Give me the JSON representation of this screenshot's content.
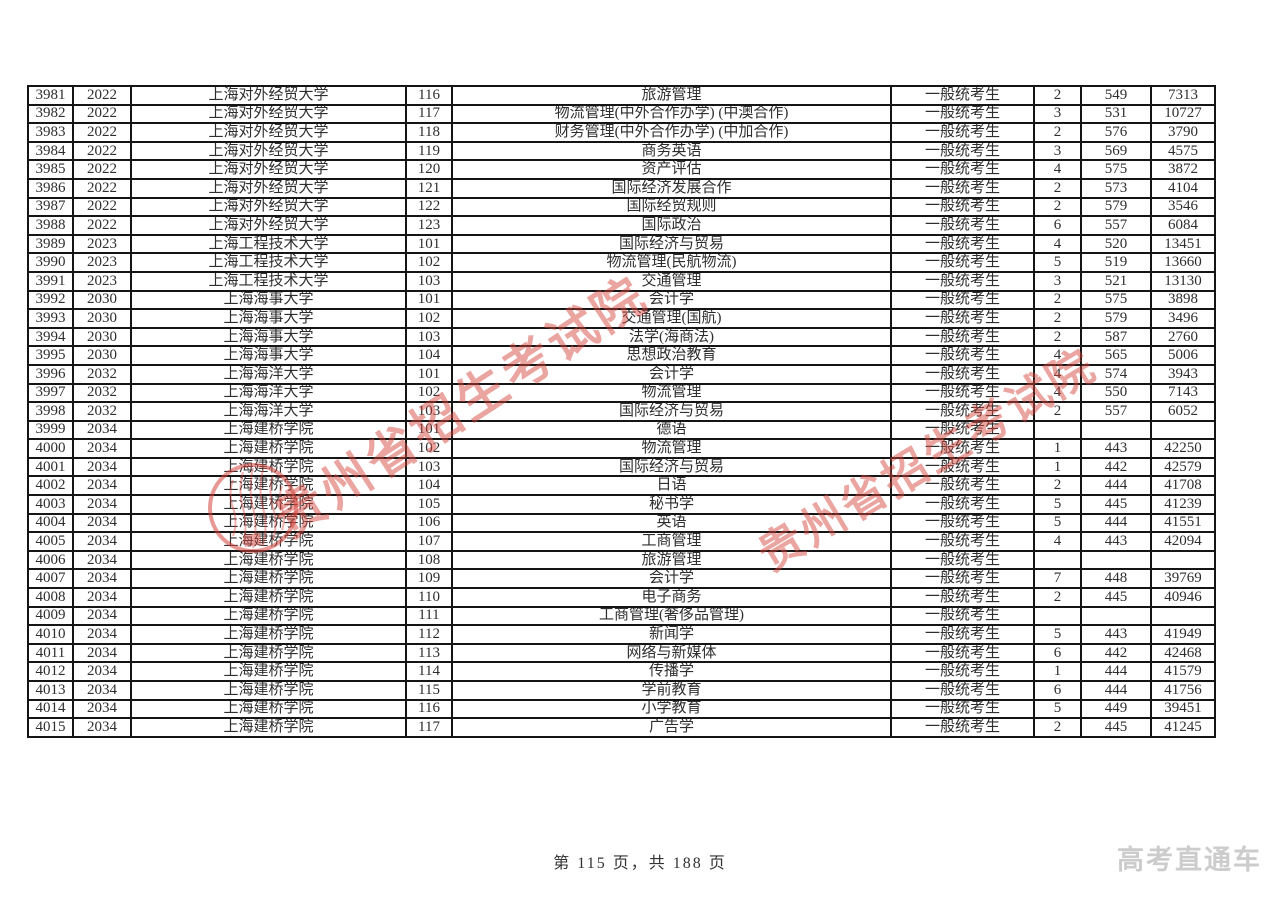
{
  "page": {
    "footer_text": "第 115 页，共 188 页",
    "brand_text": "高考直通车",
    "watermark_text": "贵州省招生考试院",
    "watermark_color": "#d6453d"
  },
  "table": {
    "column_keys": [
      "seq",
      "school_code",
      "university",
      "major_code",
      "major",
      "candidate_type",
      "plan_count",
      "score",
      "rank"
    ],
    "rows": [
      [
        "3981",
        "2022",
        "上海对外经贸大学",
        "116",
        "旅游管理",
        "一般统考生",
        "2",
        "549",
        "7313"
      ],
      [
        "3982",
        "2022",
        "上海对外经贸大学",
        "117",
        "物流管理(中外合作办学) (中澳合作)",
        "一般统考生",
        "3",
        "531",
        "10727"
      ],
      [
        "3983",
        "2022",
        "上海对外经贸大学",
        "118",
        "财务管理(中外合作办学) (中加合作)",
        "一般统考生",
        "2",
        "576",
        "3790"
      ],
      [
        "3984",
        "2022",
        "上海对外经贸大学",
        "119",
        "商务英语",
        "一般统考生",
        "3",
        "569",
        "4575"
      ],
      [
        "3985",
        "2022",
        "上海对外经贸大学",
        "120",
        "资产评估",
        "一般统考生",
        "4",
        "575",
        "3872"
      ],
      [
        "3986",
        "2022",
        "上海对外经贸大学",
        "121",
        "国际经济发展合作",
        "一般统考生",
        "2",
        "573",
        "4104"
      ],
      [
        "3987",
        "2022",
        "上海对外经贸大学",
        "122",
        "国际经贸规则",
        "一般统考生",
        "2",
        "579",
        "3546"
      ],
      [
        "3988",
        "2022",
        "上海对外经贸大学",
        "123",
        "国际政治",
        "一般统考生",
        "6",
        "557",
        "6084"
      ],
      [
        "3989",
        "2023",
        "上海工程技术大学",
        "101",
        "国际经济与贸易",
        "一般统考生",
        "4",
        "520",
        "13451"
      ],
      [
        "3990",
        "2023",
        "上海工程技术大学",
        "102",
        "物流管理(民航物流)",
        "一般统考生",
        "5",
        "519",
        "13660"
      ],
      [
        "3991",
        "2023",
        "上海工程技术大学",
        "103",
        "交通管理",
        "一般统考生",
        "3",
        "521",
        "13130"
      ],
      [
        "3992",
        "2030",
        "上海海事大学",
        "101",
        "会计学",
        "一般统考生",
        "2",
        "575",
        "3898"
      ],
      [
        "3993",
        "2030",
        "上海海事大学",
        "102",
        "交通管理(国航)",
        "一般统考生",
        "2",
        "579",
        "3496"
      ],
      [
        "3994",
        "2030",
        "上海海事大学",
        "103",
        "法学(海商法)",
        "一般统考生",
        "2",
        "587",
        "2760"
      ],
      [
        "3995",
        "2030",
        "上海海事大学",
        "104",
        "思想政治教育",
        "一般统考生",
        "4",
        "565",
        "5006"
      ],
      [
        "3996",
        "2032",
        "上海海洋大学",
        "101",
        "会计学",
        "一般统考生",
        "4",
        "574",
        "3943"
      ],
      [
        "3997",
        "2032",
        "上海海洋大学",
        "102",
        "物流管理",
        "一般统考生",
        "4",
        "550",
        "7143"
      ],
      [
        "3998",
        "2032",
        "上海海洋大学",
        "103",
        "国际经济与贸易",
        "一般统考生",
        "2",
        "557",
        "6052"
      ],
      [
        "3999",
        "2034",
        "上海建桥学院",
        "101",
        "德语",
        "一般统考生",
        "",
        "",
        ""
      ],
      [
        "4000",
        "2034",
        "上海建桥学院",
        "102",
        "物流管理",
        "一般统考生",
        "1",
        "443",
        "42250"
      ],
      [
        "4001",
        "2034",
        "上海建桥学院",
        "103",
        "国际经济与贸易",
        "一般统考生",
        "1",
        "442",
        "42579"
      ],
      [
        "4002",
        "2034",
        "上海建桥学院",
        "104",
        "日语",
        "一般统考生",
        "2",
        "444",
        "41708"
      ],
      [
        "4003",
        "2034",
        "上海建桥学院",
        "105",
        "秘书学",
        "一般统考生",
        "5",
        "445",
        "41239"
      ],
      [
        "4004",
        "2034",
        "上海建桥学院",
        "106",
        "英语",
        "一般统考生",
        "5",
        "444",
        "41551"
      ],
      [
        "4005",
        "2034",
        "上海建桥学院",
        "107",
        "工商管理",
        "一般统考生",
        "4",
        "443",
        "42094"
      ],
      [
        "4006",
        "2034",
        "上海建桥学院",
        "108",
        "旅游管理",
        "一般统考生",
        "",
        "",
        ""
      ],
      [
        "4007",
        "2034",
        "上海建桥学院",
        "109",
        "会计学",
        "一般统考生",
        "7",
        "448",
        "39769"
      ],
      [
        "4008",
        "2034",
        "上海建桥学院",
        "110",
        "电子商务",
        "一般统考生",
        "2",
        "445",
        "40946"
      ],
      [
        "4009",
        "2034",
        "上海建桥学院",
        "111",
        "工商管理(奢侈品管理)",
        "一般统考生",
        "",
        "",
        ""
      ],
      [
        "4010",
        "2034",
        "上海建桥学院",
        "112",
        "新闻学",
        "一般统考生",
        "5",
        "443",
        "41949"
      ],
      [
        "4011",
        "2034",
        "上海建桥学院",
        "113",
        "网络与新媒体",
        "一般统考生",
        "6",
        "442",
        "42468"
      ],
      [
        "4012",
        "2034",
        "上海建桥学院",
        "114",
        "传播学",
        "一般统考生",
        "1",
        "444",
        "41579"
      ],
      [
        "4013",
        "2034",
        "上海建桥学院",
        "115",
        "学前教育",
        "一般统考生",
        "6",
        "444",
        "41756"
      ],
      [
        "4014",
        "2034",
        "上海建桥学院",
        "116",
        "小学教育",
        "一般统考生",
        "5",
        "449",
        "39451"
      ],
      [
        "4015",
        "2034",
        "上海建桥学院",
        "117",
        "广告学",
        "一般统考生",
        "2",
        "445",
        "41245"
      ]
    ]
  }
}
